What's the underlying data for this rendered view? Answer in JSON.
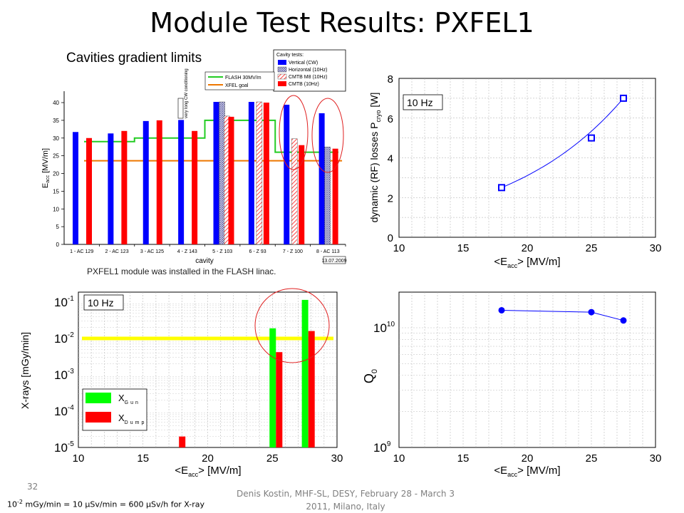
{
  "slide": {
    "title": "Module Test Results: PXFEL1",
    "caption": "PXFEL1 module was installed in the FLASH linac.",
    "page_number": "32",
    "footer": "Denis Kostin, MHF-SL, DESY, February 28 - March 3 2011, Milano, Italy",
    "note_pre": "10",
    "note_exp": "-2",
    "note_post": " mGy/min = 10 μSv/min = 600 μSv/h for X-ray"
  },
  "chart_data": [
    {
      "type": "bar",
      "title": "Cavities gradient limits",
      "xlabel": "cavity",
      "ylabel": "E_acc [MV/m]",
      "ylim": [
        0,
        45
      ],
      "yticks": [
        0,
        5,
        10,
        15,
        20,
        25,
        30,
        35,
        40
      ],
      "categories": [
        "1 - AC 129",
        "2 - AC 123",
        "3 - AC 125",
        "4 - Z 143",
        "5 - Z 103",
        "6 - Z 93",
        "7 - Z 100",
        "8 - AC 113"
      ],
      "legend_title": "Cavity tests:",
      "series": [
        {
          "name": "Vertical (CW)",
          "color": "#0000ff",
          "values": [
            31.7,
            31.3,
            34.8,
            35.1,
            40.2,
            40.2,
            39.4,
            37.0
          ]
        },
        {
          "name": "Horizontal (10Hz)",
          "color": "#9999cc",
          "pattern": "crosshatch",
          "values": [
            null,
            null,
            null,
            null,
            40.2,
            null,
            null,
            27.5
          ]
        },
        {
          "name": "CMTB M8 (10Hz)",
          "color": "#ff9999",
          "pattern": "hatch",
          "values": [
            null,
            null,
            null,
            null,
            36.2,
            40.2,
            29.8,
            null
          ]
        },
        {
          "name": "CMTB (10Hz)",
          "color": "#ff0000",
          "values": [
            30.0,
            32.0,
            35.0,
            32.0,
            36.0,
            40.0,
            28.0,
            27.0
          ]
        }
      ],
      "lines": [
        {
          "name": "FLASH 30MV/m",
          "color": "#22cc22",
          "steps": [
            29,
            29,
            30,
            30,
            35,
            35,
            26,
            26
          ]
        },
        {
          "name": "XFEL goal",
          "color": "#ee7700",
          "value": 23.6
        }
      ],
      "annotation": "very long CW conditioning",
      "date_stamp": "13.07.2009",
      "highlights": [
        "7 - Z 100",
        "8 - AC 113"
      ]
    },
    {
      "type": "line",
      "label": "10 Hz",
      "xlabel": "<E_acc> [MV/m]",
      "ylabel": "dynamic (RF) losses P_cryo [W]",
      "xlim": [
        10,
        30
      ],
      "ylim": [
        0,
        8
      ],
      "xticks": [
        10,
        15,
        20,
        25,
        30
      ],
      "yticks": [
        0,
        2,
        4,
        6,
        8
      ],
      "x": [
        18,
        25,
        27.5
      ],
      "y": [
        2.5,
        5.0,
        7.0
      ],
      "color": "#0000ff",
      "marker": "square"
    },
    {
      "type": "bar",
      "label": "10 Hz",
      "xlabel": "<E_acc> [MV/m]",
      "ylabel": "X-rays [mGy/min]",
      "xlim": [
        10,
        30
      ],
      "ylim": [
        1e-05,
        0.1
      ],
      "yscale": "log",
      "xticks": [
        10,
        15,
        20,
        25,
        30
      ],
      "ytick_exponents": [
        "-1",
        "-2",
        "-3",
        "-4",
        "-5"
      ],
      "series": [
        {
          "name": "X_Gun",
          "color": "#00ff00",
          "x": [
            25,
            27.5
          ],
          "values": [
            0.019,
            0.115
          ]
        },
        {
          "name": "X_Dump",
          "color": "#ff0000",
          "x": [
            18,
            25.5,
            28
          ],
          "values": [
            2e-05,
            0.0042,
            0.016
          ]
        }
      ],
      "threshold": {
        "value": 0.01,
        "color": "#ffff00"
      },
      "highlight_x": [
        25,
        27.5
      ]
    },
    {
      "type": "line",
      "xlabel": "<E_acc> [MV/m]",
      "ylabel": "Q0",
      "xlim": [
        10,
        30
      ],
      "ylim": [
        1000000000,
        20000000000
      ],
      "yscale": "log",
      "xticks": [
        10,
        15,
        20,
        25,
        30
      ],
      "ytick_exponents": [
        "10",
        "9"
      ],
      "x": [
        18,
        25,
        27.5
      ],
      "y": [
        14000000000,
        13500000000,
        11500000000
      ],
      "color": "#0000ff",
      "marker": "circle"
    }
  ]
}
